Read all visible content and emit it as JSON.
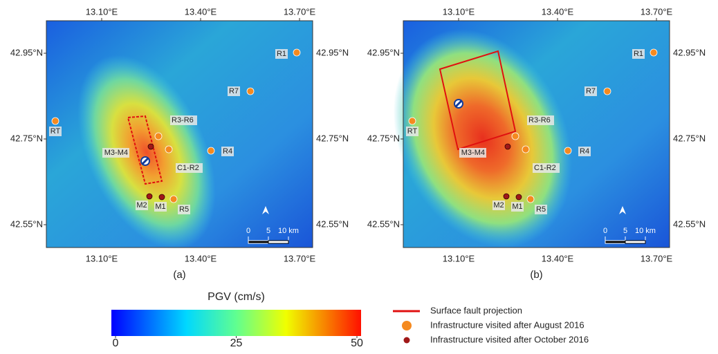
{
  "panels": [
    {
      "label": "(a)",
      "lon_ticks": [
        {
          "value": 13.1,
          "label": "13.10°E"
        },
        {
          "value": 13.4,
          "label": "13.40°E"
        },
        {
          "value": 13.7,
          "label": "13.70°E"
        }
      ],
      "lat_ticks": [
        {
          "value": 42.95,
          "label": "42.95°N"
        },
        {
          "value": 42.75,
          "label": "42.75°N"
        },
        {
          "value": 42.55,
          "label": "42.55°N"
        }
      ],
      "sites": [
        "R1",
        "R7",
        "RT",
        "R3-R6",
        "M3-M4",
        "R4",
        "C1-R2",
        "M2",
        "M1",
        "R5"
      ],
      "scale_bar": [
        0,
        5,
        {
          "value": 10,
          "label": "10 km"
        }
      ]
    },
    {
      "label": "(b)",
      "lon_ticks": [
        {
          "value": 13.1,
          "label": "13.10°E"
        },
        {
          "value": 13.4,
          "label": "13.40°E"
        },
        {
          "value": 13.7,
          "label": "13.70°E"
        }
      ],
      "lat_ticks": [
        {
          "value": 42.95,
          "label": "42.95°N"
        },
        {
          "value": 42.75,
          "label": "42.75°N"
        },
        {
          "value": 42.55,
          "label": "42.55°N"
        }
      ],
      "sites": [
        "R1",
        "R7",
        "RT",
        "R3-R6",
        "M3-M4",
        "R4",
        "C1-R2",
        "M2",
        "M1",
        "R5"
      ],
      "scale_bar": [
        0,
        5,
        {
          "value": 10,
          "label": "10 km"
        }
      ]
    }
  ],
  "colorbar": {
    "title": "PGV (cm/s)",
    "range": [
      0,
      50
    ],
    "ticks": [
      0,
      25,
      50
    ]
  },
  "legend": [
    "Surface fault projection",
    "Infrastructure visited after August 2016",
    "Infrastructure visited after October 2016"
  ]
}
